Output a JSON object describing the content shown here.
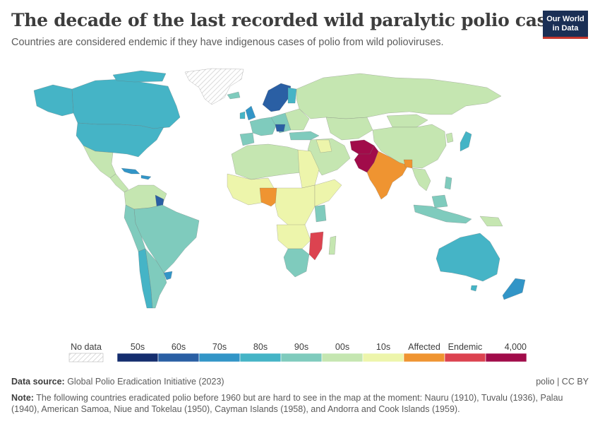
{
  "header": {
    "title": "The decade of the last recorded wild paralytic polio case",
    "subtitle": "Countries are considered endemic if they have indigenous cases of polio from wild polioviruses."
  },
  "logo": {
    "line1": "Our World",
    "line2": "in Data",
    "bg": "#1a2f55",
    "accent": "#c4372d"
  },
  "legend": {
    "no_data_label": "No data",
    "categories": [
      {
        "label": "50s",
        "color": "#142d6e"
      },
      {
        "label": "60s",
        "color": "#2a5fa4"
      },
      {
        "label": "70s",
        "color": "#3295c7"
      },
      {
        "label": "80s",
        "color": "#45b4c6"
      },
      {
        "label": "90s",
        "color": "#7fcbbd"
      },
      {
        "label": "00s",
        "color": "#c5e6b1"
      },
      {
        "label": "10s",
        "color": "#edf5ab"
      },
      {
        "label": "Affected",
        "color": "#ef9431"
      },
      {
        "label": "Endemic",
        "color": "#dc4350"
      },
      {
        "label": "4,000",
        "color": "#a10c4a"
      }
    ]
  },
  "footer": {
    "source_label": "Data source:",
    "source_text": " Global Polio Eradication Initiative (2023)",
    "license": "polio | CC BY",
    "note_label": "Note:",
    "note_text": " The following countries eradicated polio before 1960 but are hard to see in the map at the moment: Nauru (1910), Tuvalu (1936), Palau (1940), American Samoa, Niue and Tokelau (1950), Cayman Islands (1958), and Andorra and Cook Islands (1959)."
  }
}
